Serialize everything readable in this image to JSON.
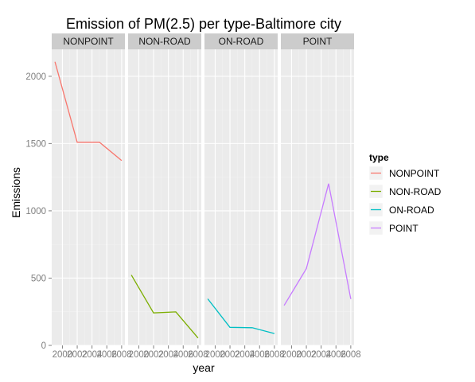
{
  "chart_data": {
    "type": "line",
    "title": "Emission of PM(2.5) per type-Baltimore city",
    "xlabel": "year",
    "ylabel": "Emissions",
    "x": [
      1999,
      2002,
      2005,
      2008
    ],
    "xlim": [
      1999,
      2008
    ],
    "ylim": [
      0,
      2200
    ],
    "x_tick_labels": [
      "2000",
      "2002",
      "2004",
      "2006",
      "2008"
    ],
    "x_tick_values": [
      2000,
      2002,
      2004,
      2006,
      2008
    ],
    "y_ticks": [
      0,
      500,
      1000,
      1500,
      2000
    ],
    "legend_title": "type",
    "legend_placement": "right",
    "grid": true,
    "panel_background": "#ebebeb",
    "strip_background": "#cccccc",
    "facets": [
      "NONPOINT",
      "NON-ROAD",
      "ON-ROAD",
      "POINT"
    ],
    "series": [
      {
        "name": "NONPOINT",
        "color": "#F8766D",
        "values": [
          2107,
          1510,
          1510,
          1373
        ]
      },
      {
        "name": "NON-ROAD",
        "color": "#7CAE00",
        "values": [
          523,
          241,
          249,
          55
        ]
      },
      {
        "name": "ON-ROAD",
        "color": "#00BFC4",
        "values": [
          346,
          134,
          131,
          88
        ]
      },
      {
        "name": "POINT",
        "color": "#C77CFF",
        "values": [
          297,
          570,
          1202,
          345
        ]
      }
    ]
  }
}
